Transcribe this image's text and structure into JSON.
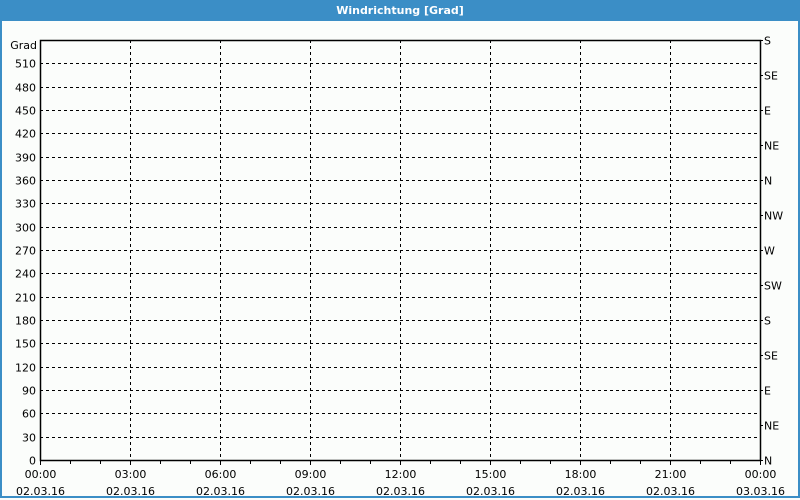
{
  "title": "Windrichtung [Grad]",
  "colors": {
    "titlebar": "#3b8ec6",
    "background": "#fbfdfb",
    "grid": "#000000"
  },
  "chart_data": {
    "type": "line",
    "title": "Windrichtung [Grad]",
    "ylabel": "Grad",
    "ylim": [
      0,
      540
    ],
    "yticks": [
      0,
      30,
      60,
      90,
      120,
      150,
      180,
      210,
      240,
      270,
      300,
      330,
      360,
      390,
      420,
      450,
      480,
      510
    ],
    "y2ticks": [
      {
        "value": 0,
        "label": "N"
      },
      {
        "value": 45,
        "label": "NE"
      },
      {
        "value": 90,
        "label": "E"
      },
      {
        "value": 135,
        "label": "SE"
      },
      {
        "value": 180,
        "label": "S"
      },
      {
        "value": 225,
        "label": "SW"
      },
      {
        "value": 270,
        "label": "W"
      },
      {
        "value": 315,
        "label": "NW"
      },
      {
        "value": 360,
        "label": "N"
      },
      {
        "value": 405,
        "label": "NE"
      },
      {
        "value": 450,
        "label": "E"
      },
      {
        "value": 495,
        "label": "SE"
      },
      {
        "value": 540,
        "label": "S"
      }
    ],
    "xticks": [
      {
        "time": "00:00",
        "date": "02.03.16"
      },
      {
        "time": "03:00",
        "date": "02.03.16"
      },
      {
        "time": "06:00",
        "date": "02.03.16"
      },
      {
        "time": "09:00",
        "date": "02.03.16"
      },
      {
        "time": "12:00",
        "date": "02.03.16"
      },
      {
        "time": "15:00",
        "date": "02.03.16"
      },
      {
        "time": "18:00",
        "date": "02.03.16"
      },
      {
        "time": "21:00",
        "date": "02.03.16"
      },
      {
        "time": "00:00",
        "date": "03.03.16"
      }
    ],
    "xlim_hours": [
      0,
      24
    ],
    "grid": true,
    "series": []
  }
}
